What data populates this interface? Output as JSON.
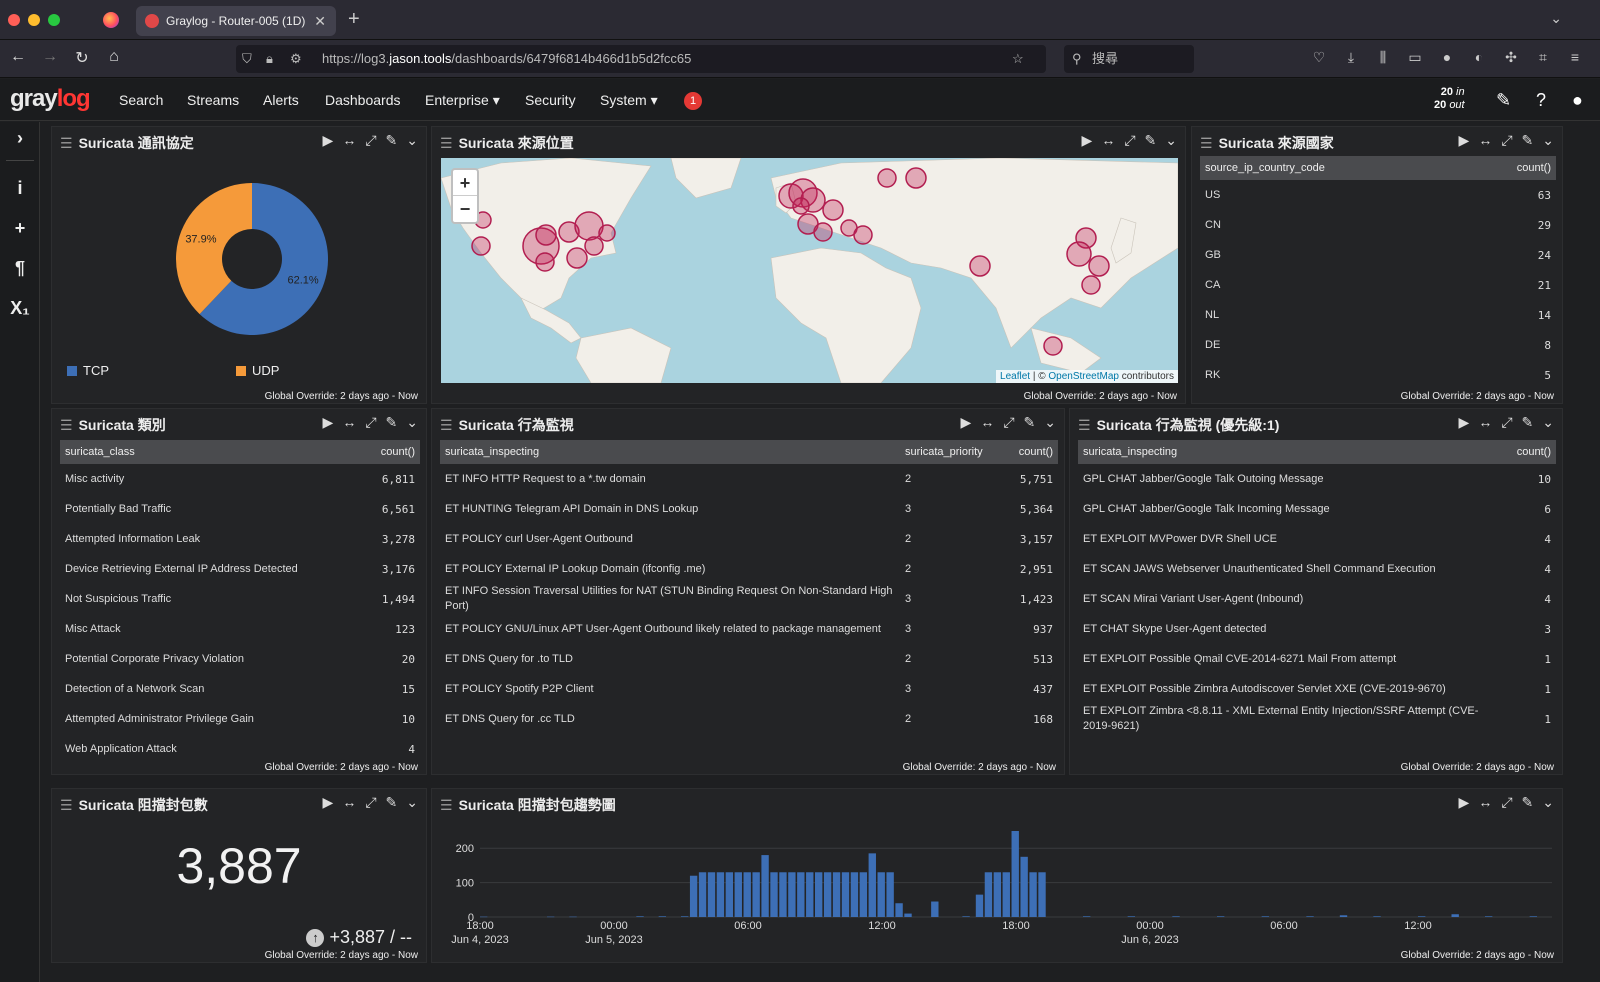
{
  "browser": {
    "tab_title": "Graylog - Router-005 (1D)",
    "url_prefix": "https://log3.",
    "url_domain": "jason.tools",
    "url_path": "/dashboards/6479f6814b466d1b5d2fcc65",
    "search_placeholder": "搜尋"
  },
  "header": {
    "logo_a": "gray",
    "logo_b": "log",
    "menu": [
      "Search",
      "Streams",
      "Alerts",
      "Dashboards",
      "Enterprise ▾",
      "Security",
      "System ▾"
    ],
    "notification_count": "1",
    "throughput_in": "20",
    "throughput_in_label": "in",
    "throughput_out": "20",
    "throughput_out_label": "out"
  },
  "global_override": "Global Override: 2 days ago - Now",
  "widgets": {
    "protocol": {
      "title": "Suricata 通訊協定",
      "slices": [
        {
          "label": "TCP",
          "pct": 62.1,
          "pct_label": "62.1%",
          "color": "#3d6fb6"
        },
        {
          "label": "UDP",
          "pct": 37.9,
          "pct_label": "37.9%",
          "color": "#f59a3a"
        }
      ]
    },
    "location": {
      "title": "Suricata 來源位置",
      "zoom_in": "+",
      "zoom_out": "−",
      "attrib_leaflet": "Leaflet",
      "attrib_sep": " | © ",
      "attrib_osm": "OpenStreetMap",
      "attrib_tail": " contributors"
    },
    "country": {
      "title": "Suricata 來源國家",
      "col_key": "source_ip_country_code",
      "col_count": "count()",
      "rows": [
        [
          "US",
          "63"
        ],
        [
          "CN",
          "29"
        ],
        [
          "GB",
          "24"
        ],
        [
          "CA",
          "21"
        ],
        [
          "NL",
          "14"
        ],
        [
          "DE",
          "8"
        ],
        [
          "RK",
          "5"
        ]
      ]
    },
    "classes": {
      "title": "Suricata 類別",
      "col_key": "suricata_class",
      "col_count": "count()",
      "rows": [
        [
          "Misc activity",
          "6,811"
        ],
        [
          "Potentially Bad Traffic",
          "6,561"
        ],
        [
          "Attempted Information Leak",
          "3,278"
        ],
        [
          "Device Retrieving External IP Address Detected",
          "3,176"
        ],
        [
          "Not Suspicious Traffic",
          "1,494"
        ],
        [
          "Misc Attack",
          "123"
        ],
        [
          "Potential Corporate Privacy Violation",
          "20"
        ],
        [
          "Detection of a Network Scan",
          "15"
        ],
        [
          "Attempted Administrator Privilege Gain",
          "10"
        ],
        [
          "Web Application Attack",
          "4"
        ]
      ]
    },
    "inspect": {
      "title": "Suricata 行為監視",
      "col_key": "suricata_inspecting",
      "col_prio": "suricata_priority",
      "col_count": "count()",
      "rows": [
        [
          "ET INFO HTTP Request to a *.tw domain",
          "2",
          "5,751"
        ],
        [
          "ET HUNTING Telegram API Domain in DNS Lookup",
          "3",
          "5,364"
        ],
        [
          "ET POLICY curl User-Agent Outbound",
          "2",
          "3,157"
        ],
        [
          "ET POLICY External IP Lookup Domain (ifconfig .me)",
          "2",
          "2,951"
        ],
        [
          "ET INFO Session Traversal Utilities for NAT (STUN Binding Request On Non-Standard High Port)",
          "3",
          "1,423"
        ],
        [
          "ET POLICY GNU/Linux APT User-Agent Outbound likely related to package management",
          "3",
          "937"
        ],
        [
          "ET DNS Query for .to TLD",
          "2",
          "513"
        ],
        [
          "ET POLICY Spotify P2P Client",
          "3",
          "437"
        ],
        [
          "ET DNS Query for .cc TLD",
          "2",
          "168"
        ]
      ]
    },
    "inspect_p1": {
      "title": "Suricata 行為監視 (優先級:1)",
      "col_key": "suricata_inspecting",
      "col_count": "count()",
      "rows": [
        [
          "GPL CHAT Jabber/Google Talk Outoing Message",
          "10"
        ],
        [
          "GPL CHAT Jabber/Google Talk Incoming Message",
          "6"
        ],
        [
          "ET EXPLOIT MVPower DVR Shell UCE",
          "4"
        ],
        [
          "ET SCAN JAWS Webserver Unauthenticated Shell Command Execution",
          "4"
        ],
        [
          "ET SCAN Mirai Variant User-Agent (Inbound)",
          "4"
        ],
        [
          "ET CHAT Skype User-Agent detected",
          "3"
        ],
        [
          "ET EXPLOIT Possible Qmail CVE-2014-6271 Mail From attempt",
          "1"
        ],
        [
          "ET EXPLOIT Possible Zimbra Autodiscover Servlet XXE (CVE-2019-9670)",
          "1"
        ],
        [
          "ET EXPLOIT Zimbra <8.8.11 - XML External Entity Injection/SSRF Attempt (CVE-2019-9621)",
          "1"
        ]
      ]
    },
    "blocked": {
      "title": "Suricata 阻擋封包數",
      "value": "3,887",
      "delta": "+3,887 / --"
    },
    "trend": {
      "title": "Suricata 阻擋封包趨勢圖"
    }
  },
  "chart_data": {
    "type": "bar",
    "ylim": [
      0,
      250
    ],
    "yticks": [
      "0",
      "100",
      "200"
    ],
    "xticks": [
      {
        "label": "18:00",
        "sub": "Jun 4, 2023",
        "h": 0
      },
      {
        "label": "00:00",
        "sub": "Jun 5, 2023",
        "h": 6
      },
      {
        "label": "06:00",
        "sub": "",
        "h": 12
      },
      {
        "label": "12:00",
        "sub": "",
        "h": 18
      },
      {
        "label": "18:00",
        "sub": "",
        "h": 24
      },
      {
        "label": "00:00",
        "sub": "Jun 6, 2023",
        "h": 30
      },
      {
        "label": "06:00",
        "sub": "",
        "h": 36
      },
      {
        "label": "12:00",
        "sub": "",
        "h": 42
      }
    ],
    "hours_span": 48,
    "values": [
      0,
      0,
      0,
      0,
      0,
      0,
      0,
      0,
      0,
      0,
      0,
      0,
      0,
      0,
      0,
      0,
      0,
      0,
      0,
      0,
      0,
      0,
      0,
      0,
      0,
      0,
      0,
      0,
      0,
      0,
      0,
      0,
      0,
      0,
      0,
      0,
      0,
      0,
      0,
      0,
      0,
      0,
      0,
      0,
      0,
      0,
      0,
      0,
      0,
      0,
      0,
      0,
      0,
      0,
      0,
      0,
      0,
      0,
      0,
      0,
      0,
      0,
      0,
      0,
      0,
      0,
      0,
      0,
      0,
      0,
      0,
      0,
      0,
      0,
      0,
      0,
      0,
      0,
      0,
      0,
      0,
      0,
      0,
      0,
      0,
      0,
      0,
      0,
      0,
      0,
      0,
      0,
      0,
      0,
      0,
      0,
      0,
      0,
      0,
      0,
      0,
      0,
      0,
      0,
      0,
      0,
      0,
      0,
      0,
      0,
      0,
      0,
      0,
      0,
      0,
      0,
      0,
      0,
      0,
      0,
      0,
      0,
      0,
      0,
      0,
      0,
      0,
      0,
      0,
      0,
      0,
      0,
      0,
      0,
      0,
      0,
      0,
      0,
      0,
      0,
      0,
      0,
      0,
      0,
      0,
      0,
      0,
      0,
      0,
      0,
      0,
      0,
      0,
      0,
      0,
      0,
      0,
      0,
      0,
      0,
      0,
      0,
      0,
      0,
      0,
      0,
      0,
      0,
      0,
      0,
      0,
      0,
      0,
      0,
      0,
      0,
      0,
      0,
      0,
      0,
      0,
      0,
      0,
      0,
      0,
      0,
      0,
      0,
      0,
      0,
      0,
      0,
      0,
      0,
      0
    ],
    "bars": [
      [
        0,
        1
      ],
      [
        3,
        1
      ],
      [
        4,
        1
      ],
      [
        7,
        2
      ],
      [
        8,
        2
      ],
      [
        9,
        2
      ],
      [
        9.4,
        120
      ],
      [
        9.8,
        130
      ],
      [
        10.2,
        130
      ],
      [
        10.6,
        130
      ],
      [
        11,
        130
      ],
      [
        11.4,
        130
      ],
      [
        11.8,
        130
      ],
      [
        12.2,
        130
      ],
      [
        12.6,
        180
      ],
      [
        13,
        130
      ],
      [
        13.4,
        130
      ],
      [
        13.8,
        130
      ],
      [
        14.2,
        130
      ],
      [
        14.6,
        130
      ],
      [
        15,
        130
      ],
      [
        15.4,
        130
      ],
      [
        15.8,
        130
      ],
      [
        16.2,
        130
      ],
      [
        16.6,
        130
      ],
      [
        17,
        130
      ],
      [
        17.4,
        185
      ],
      [
        17.8,
        130
      ],
      [
        18.2,
        130
      ],
      [
        18.6,
        40
      ],
      [
        19,
        10
      ],
      [
        20.2,
        45
      ],
      [
        21.6,
        2
      ],
      [
        22.2,
        65
      ],
      [
        22.6,
        130
      ],
      [
        23,
        130
      ],
      [
        23.4,
        130
      ],
      [
        23.8,
        250
      ],
      [
        24.2,
        175
      ],
      [
        24.6,
        130
      ],
      [
        25,
        130
      ],
      [
        27,
        2
      ],
      [
        29,
        2
      ],
      [
        31,
        2
      ],
      [
        33,
        2
      ],
      [
        35,
        2
      ],
      [
        37,
        2
      ],
      [
        38.5,
        5
      ],
      [
        40,
        2
      ],
      [
        42,
        2
      ],
      [
        43.5,
        8
      ],
      [
        45,
        2
      ],
      [
        47,
        2
      ]
    ]
  }
}
